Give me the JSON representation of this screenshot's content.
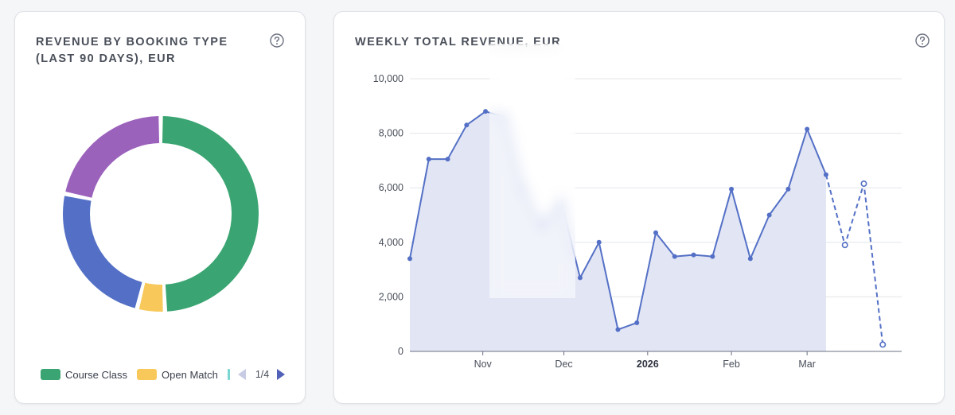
{
  "left_card": {
    "title": "REVENUE BY BOOKING TYPE (LAST 90 DAYS), EUR",
    "help_icon": "question-circle-icon",
    "legend": {
      "items": [
        {
          "label": "Course Class",
          "color": "#3aa572"
        },
        {
          "label": "Open Match",
          "color": "#f8c95a"
        }
      ],
      "page": "1/4"
    }
  },
  "right_card": {
    "title": "WEEKLY TOTAL REVENUE, EUR",
    "help_icon": "question-circle-icon"
  },
  "chart_data": [
    {
      "type": "pie",
      "title": "REVENUE BY BOOKING TYPE (LAST 90 DAYS), EUR",
      "style": "donut",
      "slices": [
        {
          "label": "Course Class",
          "percent": 49.3,
          "color": "#3aa572"
        },
        {
          "label": "Open Match",
          "percent": 4.6,
          "color": "#f8c95a"
        },
        {
          "label": "",
          "percent": 24.4,
          "color": "#5470c6"
        },
        {
          "label": "",
          "percent": 21.7,
          "color": "#9b62bc"
        }
      ],
      "legend": "bottom"
    },
    {
      "type": "area",
      "title": "WEEKLY TOTAL REVENUE, EUR",
      "color": "#5470c6",
      "fill": "#e1e5f4",
      "grid": true,
      "ylim": [
        0,
        10000
      ],
      "yticks": [
        "0",
        "2,000",
        "4,000",
        "6,000",
        "8,000",
        "10,000"
      ],
      "yticks_values": [
        0,
        2000,
        4000,
        6000,
        8000,
        10000
      ],
      "xticks": [
        {
          "label": "Nov",
          "date": "2025-11-01",
          "bold": false
        },
        {
          "label": "Dec",
          "date": "2025-12-01",
          "bold": false
        },
        {
          "label": "2026",
          "date": "2026-01-01",
          "bold": true
        },
        {
          "label": "Feb",
          "date": "2026-02-01",
          "bold": false
        },
        {
          "label": "Mar",
          "date": "2026-03-01",
          "bold": false
        }
      ],
      "xlim": [
        "2025-10-05",
        "2026-04-05"
      ],
      "series": [
        {
          "style": "solid",
          "points": [
            {
              "date": "2025-10-05",
              "value": 3400
            },
            {
              "date": "2025-10-12",
              "value": 7050
            },
            {
              "date": "2025-10-19",
              "value": 7050
            },
            {
              "date": "2025-10-26",
              "value": 8300
            },
            {
              "date": "2025-11-02",
              "value": 8800
            },
            {
              "date": "2025-11-09",
              "value": 8600
            },
            {
              "date": "2025-11-16",
              "value": 5900
            },
            {
              "date": "2025-11-23",
              "value": 4600
            },
            {
              "date": "2025-11-30",
              "value": 5500
            },
            {
              "date": "2025-12-07",
              "value": 2700
            },
            {
              "date": "2025-12-14",
              "value": 4000
            },
            {
              "date": "2025-12-21",
              "value": 800
            },
            {
              "date": "2025-12-28",
              "value": 1050
            },
            {
              "date": "2026-01-04",
              "value": 4350
            },
            {
              "date": "2026-01-11",
              "value": 3480
            },
            {
              "date": "2026-01-18",
              "value": 3540
            },
            {
              "date": "2026-01-25",
              "value": 3480
            },
            {
              "date": "2026-02-01",
              "value": 5950
            },
            {
              "date": "2026-02-08",
              "value": 3400
            },
            {
              "date": "2026-02-15",
              "value": 5000
            },
            {
              "date": "2026-02-22",
              "value": 5950
            },
            {
              "date": "2026-03-01",
              "value": 8150
            },
            {
              "date": "2026-03-08",
              "value": 6480
            }
          ]
        },
        {
          "style": "dashed",
          "points": [
            {
              "date": "2026-03-08",
              "value": 6480
            },
            {
              "date": "2026-03-15",
              "value": 3900
            },
            {
              "date": "2026-03-22",
              "value": 6150
            },
            {
              "date": "2026-03-29",
              "value": 250
            }
          ]
        }
      ]
    }
  ]
}
